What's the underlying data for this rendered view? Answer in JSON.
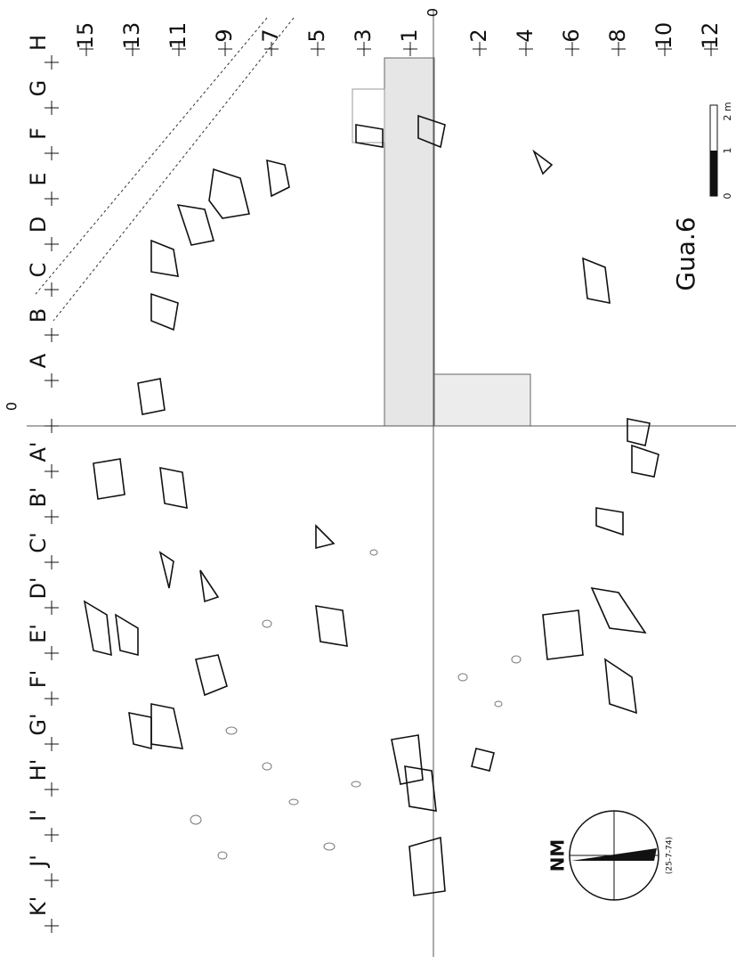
{
  "plan": {
    "top_labels": [
      15,
      13,
      11,
      9,
      7,
      5,
      3,
      1,
      0,
      2,
      4,
      6,
      8,
      10,
      12
    ],
    "left_labels": [
      "H",
      "G",
      "F",
      "E",
      "D",
      "C",
      "B",
      "A",
      "0",
      "A'",
      "B'",
      "C'",
      "D'",
      "E'",
      "F'",
      "G'",
      "H'",
      "I'",
      "J'",
      "K'"
    ],
    "title": "Gua.6",
    "scale_labels": [
      "0",
      "1",
      "2 m"
    ],
    "north_label": "NM",
    "date": "(25-7-74)"
  }
}
